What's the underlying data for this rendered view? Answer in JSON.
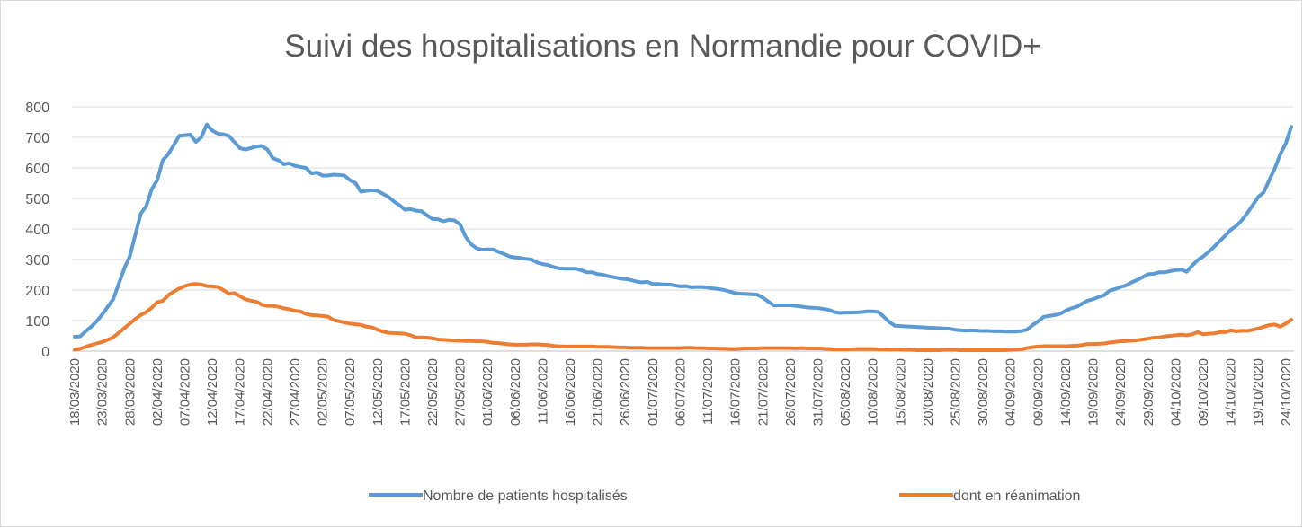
{
  "chart_data": {
    "type": "line",
    "title": "Suivi des hospitalisations en Normandie pour COVID+",
    "categories": [
      "18/03/2020",
      null,
      null,
      null,
      null,
      "23/03/2020",
      null,
      null,
      null,
      null,
      "28/03/2020",
      null,
      null,
      null,
      null,
      "02/04/2020",
      null,
      null,
      null,
      null,
      "07/04/2020",
      null,
      null,
      null,
      null,
      "12/04/2020",
      null,
      null,
      null,
      null,
      "17/04/2020",
      null,
      null,
      null,
      null,
      "22/04/2020",
      null,
      null,
      null,
      null,
      "27/04/2020",
      null,
      null,
      null,
      null,
      "02/05/2020",
      null,
      null,
      null,
      null,
      "07/05/2020",
      null,
      null,
      null,
      null,
      "12/05/2020",
      null,
      null,
      null,
      null,
      "17/05/2020",
      null,
      null,
      null,
      null,
      "22/05/2020",
      null,
      null,
      null,
      null,
      "27/05/2020",
      null,
      null,
      null,
      null,
      "01/06/2020",
      null,
      null,
      null,
      null,
      "06/06/2020",
      null,
      null,
      null,
      null,
      "11/06/2020",
      null,
      null,
      null,
      null,
      "16/06/2020",
      null,
      null,
      null,
      null,
      "21/06/2020",
      null,
      null,
      null,
      null,
      "26/06/2020",
      null,
      null,
      null,
      null,
      "01/07/2020",
      null,
      null,
      null,
      null,
      "06/07/2020",
      null,
      null,
      null,
      null,
      "11/07/2020",
      null,
      null,
      null,
      null,
      "16/07/2020",
      null,
      null,
      null,
      null,
      "21/07/2020",
      null,
      null,
      null,
      null,
      "26/07/2020",
      null,
      null,
      null,
      null,
      "31/07/2020",
      null,
      null,
      null,
      null,
      "05/08/2020",
      null,
      null,
      null,
      null,
      "10/08/2020",
      null,
      null,
      null,
      null,
      "15/08/2020",
      null,
      null,
      null,
      null,
      "20/08/2020",
      null,
      null,
      null,
      null,
      "25/08/2020",
      null,
      null,
      null,
      null,
      "30/08/2020",
      null,
      null,
      null,
      null,
      "04/09/2020",
      null,
      null,
      null,
      null,
      "09/09/2020",
      null,
      null,
      null,
      null,
      "14/09/2020",
      null,
      null,
      null,
      null,
      "19/09/2020",
      null,
      null,
      null,
      null,
      "24/09/2020",
      null,
      null,
      null,
      null,
      "29/09/2020",
      null,
      null,
      null,
      null,
      "04/10/2020",
      null,
      null,
      null,
      null,
      "09/10/2020",
      null,
      null,
      null,
      null,
      "14/10/2020",
      null,
      null,
      null,
      null,
      "19/10/2020",
      null,
      null,
      null,
      null,
      "24/10/2020",
      null
    ],
    "series": [
      {
        "name": "Nombre de patients hospitalisés",
        "color": "#5b9bd5",
        "values": [
          47,
          48,
          65,
          80,
          98,
          120,
          145,
          170,
          220,
          270,
          310,
          380,
          450,
          475,
          530,
          560,
          625,
          645,
          675,
          705,
          707,
          709,
          685,
          700,
          742,
          722,
          712,
          710,
          705,
          685,
          665,
          660,
          665,
          670,
          672,
          660,
          632,
          625,
          612,
          615,
          607,
          603,
          600,
          582,
          585,
          575,
          575,
          578,
          577,
          575,
          560,
          550,
          522,
          525,
          527,
          525,
          515,
          505,
          490,
          478,
          463,
          465,
          460,
          458,
          445,
          433,
          432,
          425,
          430,
          428,
          415,
          375,
          350,
          337,
          332,
          333,
          333,
          325,
          318,
          310,
          307,
          305,
          302,
          300,
          290,
          285,
          282,
          275,
          271,
          270,
          270,
          270,
          265,
          258,
          258,
          252,
          250,
          245,
          242,
          238,
          236,
          233,
          228,
          225,
          227,
          220,
          220,
          218,
          218,
          215,
          212,
          213,
          209,
          210,
          210,
          208,
          205,
          203,
          200,
          195,
          190,
          188,
          187,
          186,
          185,
          175,
          162,
          150,
          150,
          150,
          150,
          148,
          146,
          143,
          142,
          141,
          138,
          135,
          128,
          125,
          126,
          126,
          127,
          128,
          130,
          130,
          128,
          112,
          95,
          83,
          82,
          81,
          80,
          79,
          78,
          77,
          76,
          75,
          74,
          73,
          70,
          68,
          67,
          68,
          67,
          66,
          66,
          65,
          65,
          64,
          64,
          64,
          66,
          70,
          85,
          97,
          112,
          115,
          118,
          122,
          132,
          140,
          145,
          155,
          165,
          170,
          177,
          183,
          198,
          203,
          210,
          215,
          225,
          233,
          242,
          252,
          253,
          258,
          258,
          262,
          265,
          267,
          260,
          280,
          298,
          310,
          325,
          342,
          360,
          378,
          397,
          410,
          428,
          452,
          478,
          505,
          520,
          560,
          598,
          645,
          680,
          735
        ]
      },
      {
        "name": "dont en réanimation",
        "color": "#ed7d31",
        "values": [
          5,
          8,
          14,
          20,
          25,
          30,
          37,
          45,
          60,
          75,
          90,
          105,
          118,
          128,
          142,
          160,
          165,
          183,
          195,
          205,
          213,
          218,
          220,
          218,
          213,
          212,
          210,
          200,
          188,
          190,
          180,
          170,
          165,
          162,
          152,
          148,
          148,
          145,
          140,
          137,
          132,
          130,
          122,
          118,
          117,
          115,
          113,
          102,
          98,
          94,
          90,
          88,
          86,
          80,
          78,
          70,
          64,
          60,
          59,
          58,
          57,
          52,
          45,
          45,
          44,
          42,
          38,
          37,
          36,
          35,
          34,
          33,
          33,
          32,
          32,
          30,
          27,
          26,
          24,
          22,
          21,
          21,
          21,
          22,
          22,
          21,
          20,
          17,
          16,
          15,
          15,
          15,
          15,
          15,
          15,
          14,
          14,
          14,
          13,
          12,
          12,
          11,
          11,
          11,
          10,
          10,
          10,
          10,
          10,
          10,
          10,
          11,
          11,
          10,
          10,
          9,
          9,
          8,
          8,
          7,
          7,
          8,
          9,
          9,
          9,
          10,
          10,
          10,
          10,
          10,
          10,
          9,
          10,
          9,
          9,
          9,
          8,
          7,
          6,
          6,
          6,
          6,
          7,
          7,
          7,
          7,
          6,
          6,
          5,
          5,
          5,
          4,
          4,
          3,
          3,
          3,
          3,
          3,
          4,
          4,
          4,
          3,
          3,
          3,
          3,
          3,
          3,
          3,
          3,
          3,
          4,
          5,
          6,
          10,
          13,
          15,
          16,
          16,
          16,
          16,
          16,
          17,
          18,
          20,
          23,
          23,
          24,
          25,
          28,
          30,
          32,
          33,
          34,
          36,
          38,
          41,
          44,
          45,
          48,
          50,
          52,
          54,
          52,
          55,
          62,
          55,
          57,
          58,
          62,
          62,
          68,
          65,
          67,
          66,
          70,
          74,
          80,
          85,
          87,
          80,
          90,
          103
        ]
      }
    ],
    "ylim": [
      0,
      800
    ],
    "yticks": [
      0,
      100,
      200,
      300,
      400,
      500,
      600,
      700,
      800
    ],
    "grid": true,
    "legend": "bottom"
  }
}
